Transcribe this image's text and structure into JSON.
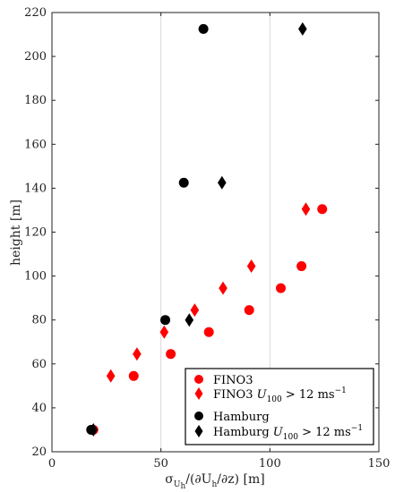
{
  "chart_data": {
    "type": "scatter",
    "xlabel": "σUh/(∂Uh/∂z) [m]",
    "ylabel": "height [m]",
    "xlim": [
      0,
      150
    ],
    "ylim": [
      20,
      220
    ],
    "xticks": [
      0,
      50,
      100,
      150
    ],
    "yticks": [
      20,
      40,
      60,
      80,
      100,
      120,
      140,
      160,
      180,
      200,
      220
    ],
    "grid": "vertical",
    "legend_position": "bottom-right",
    "series": [
      {
        "name": "FINO3",
        "marker": "circle",
        "color": "#ff0000",
        "points": [
          [
            19,
            30
          ],
          [
            37.5,
            54.5
          ],
          [
            54.5,
            64.5
          ],
          [
            72,
            74.5
          ],
          [
            90.5,
            84.5
          ],
          [
            105,
            94.5
          ],
          [
            114.5,
            104.5
          ],
          [
            124,
            130.5
          ]
        ]
      },
      {
        "name": "FINO3 U100 > 12 ms-1",
        "marker": "diamond",
        "color": "#ff0000",
        "points": [
          [
            27,
            54.5
          ],
          [
            39,
            64.5
          ],
          [
            51.5,
            74.5
          ],
          [
            65.5,
            84.5
          ],
          [
            78.5,
            94.5
          ],
          [
            91.5,
            104.5
          ],
          [
            116.5,
            130.5
          ]
        ]
      },
      {
        "name": "Hamburg",
        "marker": "circle",
        "color": "#000000",
        "points": [
          [
            18,
            30
          ],
          [
            52,
            80
          ],
          [
            60.5,
            142.5
          ],
          [
            69.5,
            212.5
          ]
        ]
      },
      {
        "name": "Hamburg U100 > 12 ms-1",
        "marker": "diamond",
        "color": "#000000",
        "points": [
          [
            19,
            30
          ],
          [
            63,
            80
          ],
          [
            78,
            142.5
          ],
          [
            115,
            212.5
          ]
        ]
      }
    ]
  }
}
